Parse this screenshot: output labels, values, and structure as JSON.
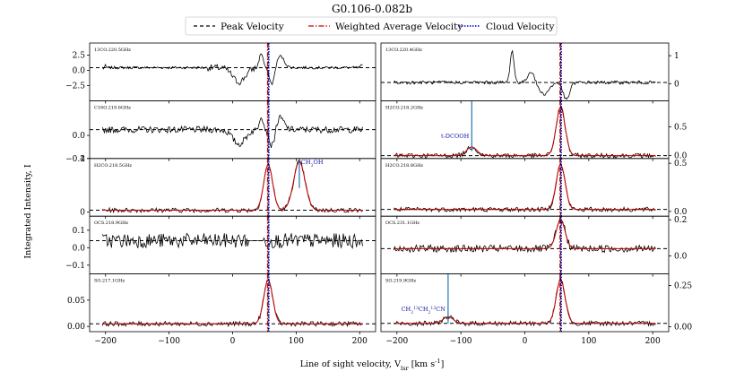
{
  "chart_data": {
    "type": "line",
    "title": "G0.106-0.082b",
    "xlabel": "Line of sight velocity, V$_{lsr}$ [km s$^{-1}$]",
    "ylabel": "Integrated Intensity, I",
    "xlim": [
      -225,
      225
    ],
    "xticks": [
      -200,
      -100,
      0,
      100,
      200
    ],
    "legend": {
      "placement": "top-center",
      "entries": [
        {
          "name": "Peak Velocity",
          "style": "dashed",
          "color": "#000000"
        },
        {
          "name": "Weighted Average Velocity",
          "style": "dashdot",
          "color": "#cc0000"
        },
        {
          "name": "Cloud Velocity",
          "style": "dotted",
          "color": "#0000cc"
        }
      ]
    },
    "peak_velocity": 56,
    "weighted_average_velocity": 55,
    "cloud_velocity": 55,
    "panels": [
      {
        "col": 0,
        "row": 0,
        "label": "13CO.220.5GHz",
        "ylim": [
          -5,
          4.5
        ],
        "yticks": [
          "2.5",
          "0.0",
          "−2.5"
        ],
        "ytickvals": [
          2.5,
          0,
          -2.5
        ],
        "hline": 0.45,
        "fit": false,
        "shape": "absorb"
      },
      {
        "col": 0,
        "row": 1,
        "label": "C18O.219.6GHz",
        "ylim": [
          -0.2,
          0.3
        ],
        "yticks": [
          "0.0",
          "−0.2"
        ],
        "ytickvals": [
          0,
          -0.2
        ],
        "hline": 0.05,
        "fit": false,
        "shape": "absorb"
      },
      {
        "col": 0,
        "row": 2,
        "label": "H2CO.218.5GHz",
        "ylim": [
          -0.3,
          4
        ],
        "yticks": [
          "0",
          "4"
        ],
        "ytickvals": [
          0,
          4
        ],
        "hline": 0.15,
        "fit": true,
        "shape": "emit",
        "second_peak": {
          "v": 105,
          "h": 3.6,
          "w": 9
        },
        "annotation": {
          "text": "CH$_3$OH",
          "v": 105
        }
      },
      {
        "col": 0,
        "row": 3,
        "label": "OCS.218.9GHz",
        "ylim": [
          -0.15,
          0.18
        ],
        "yticks": [
          "0.1",
          "0.0",
          "−0.1"
        ],
        "ytickvals": [
          0.1,
          0,
          -0.1
        ],
        "hline": 0.04,
        "fit": false,
        "shape": "noise"
      },
      {
        "col": 0,
        "row": 4,
        "label": "SO.217.1GHz",
        "ylim": [
          -0.01,
          0.1
        ],
        "yticks": [
          "0.00",
          "0.05"
        ],
        "ytickvals": [
          0,
          0.05
        ],
        "hline": 0.005,
        "fit": true,
        "shape": "emit"
      },
      {
        "col": 1,
        "row": 0,
        "label": "13CO.220.4GHz",
        "ylim": [
          -0.6,
          1.45
        ],
        "yticks": [
          "1",
          "0"
        ],
        "ytickvals": [
          1,
          0
        ],
        "hline": 0.05,
        "fit": false,
        "shape": "absorb_pos"
      },
      {
        "col": 1,
        "row": 1,
        "label": "H2CO.218.2GHz",
        "ylim": [
          -0.05,
          0.95
        ],
        "yticks": [
          "0.5",
          "0.0"
        ],
        "ytickvals": [
          0.5,
          0
        ],
        "hline": 0.0,
        "fit": true,
        "shape": "emit",
        "second_peak": {
          "v": -83,
          "h": 0.15,
          "w": 8
        },
        "annotation": {
          "text": "t-DCOOH",
          "v": -83
        }
      },
      {
        "col": 1,
        "row": 2,
        "label": "H2CO.218.8GHz",
        "ylim": [
          -0.05,
          0.55
        ],
        "yticks": [
          "0.5",
          "0.0"
        ],
        "ytickvals": [
          0.5,
          0
        ],
        "hline": 0.02,
        "fit": true,
        "shape": "emit"
      },
      {
        "col": 1,
        "row": 3,
        "label": "OCS.231.1GHz",
        "ylim": [
          -0.1,
          0.22
        ],
        "yticks": [
          "0.2",
          "0.0"
        ],
        "ytickvals": [
          0.2,
          0
        ],
        "hline": 0.04,
        "fit": true,
        "shape": "emit"
      },
      {
        "col": 1,
        "row": 4,
        "label": "SO.219.9GHz",
        "ylim": [
          -0.03,
          0.32
        ],
        "yticks": [
          "0.25",
          "0.00"
        ],
        "ytickvals": [
          0.25,
          0
        ],
        "hline": 0.02,
        "fit": true,
        "shape": "emit",
        "second_peak": {
          "v": -120,
          "h": 0.04,
          "w": 8
        },
        "annotation": {
          "text": "CH$_3^{13}$CH$_2^{13}$CN",
          "v": -120
        }
      }
    ]
  }
}
